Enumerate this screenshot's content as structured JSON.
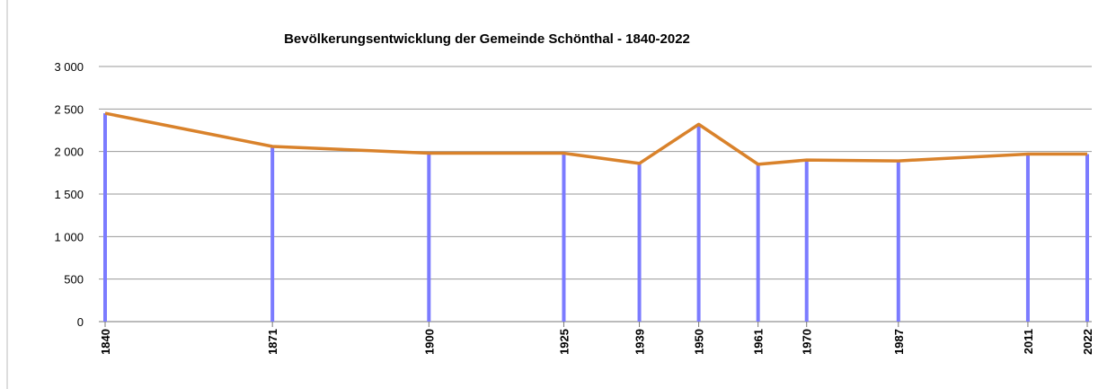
{
  "chart_data": {
    "type": "line",
    "title": "Bevölkerungsentwicklung der Gemeinde Schönthal - 1840-2022",
    "x": [
      1840,
      1871,
      1900,
      1925,
      1939,
      1950,
      1961,
      1970,
      1987,
      2011,
      2022
    ],
    "values": [
      2450,
      2060,
      1980,
      1980,
      1860,
      2320,
      1850,
      1900,
      1890,
      1970,
      1970
    ],
    "color": "#d9822b",
    "bar_color": "#7b7bff",
    "xlim": [
      1840,
      2022
    ],
    "xticks": [
      1840,
      1871,
      1900,
      1925,
      1939,
      1950,
      1961,
      1970,
      1987,
      2011,
      2022
    ],
    "ylim": [
      0,
      3000
    ],
    "yticks": [
      0,
      500,
      {
        "value": 1000,
        "label": "1 000"
      },
      {
        "value": 1500,
        "label": "1 500"
      },
      {
        "value": 2000,
        "label": "2 000"
      },
      {
        "value": 2500,
        "label": "2 500"
      },
      {
        "value": 3000,
        "label": "3 000"
      }
    ],
    "grid": true
  }
}
